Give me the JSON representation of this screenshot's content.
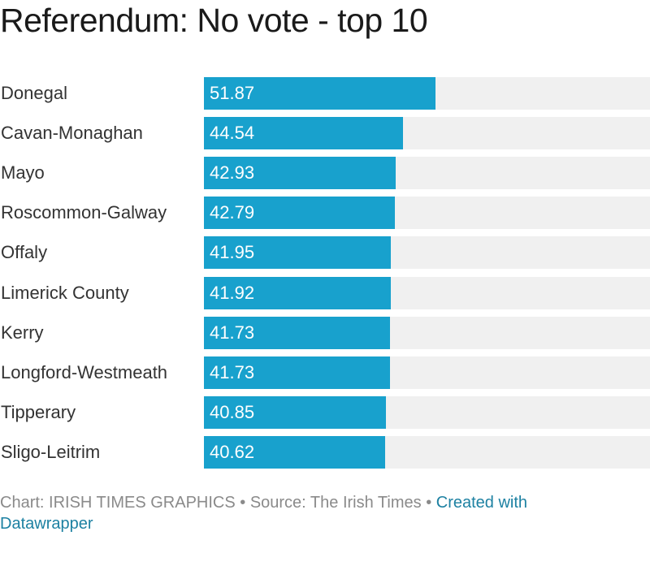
{
  "title": "Referendum: No vote - top 10",
  "footer": {
    "chart_credit": "Chart: IRISH TIMES GRAPHICS",
    "separator": " • ",
    "source": "Source: The Irish Times",
    "created_with": "Created with Datawrapper"
  },
  "colors": {
    "bar": "#18a1cd",
    "track": "#f0f0f0",
    "link": "#1d81a2"
  },
  "chart_data": {
    "type": "bar",
    "orientation": "horizontal",
    "title": "Referendum: No vote - top 10",
    "xlabel": "",
    "ylabel": "",
    "xlim": [
      0,
      100
    ],
    "grid": false,
    "categories": [
      "Donegal",
      "Cavan-Monaghan",
      "Mayo",
      "Roscommon-Galway",
      "Offaly",
      "Limerick County",
      "Kerry",
      "Longford-Westmeath",
      "Tipperary",
      "Sligo-Leitrim"
    ],
    "values": [
      51.87,
      44.54,
      42.93,
      42.79,
      41.95,
      41.92,
      41.73,
      41.73,
      40.85,
      40.62
    ],
    "value_labels": [
      "51.87",
      "44.54",
      "42.93",
      "42.79",
      "41.95",
      "41.92",
      "41.73",
      "41.73",
      "40.85",
      "40.62"
    ]
  }
}
